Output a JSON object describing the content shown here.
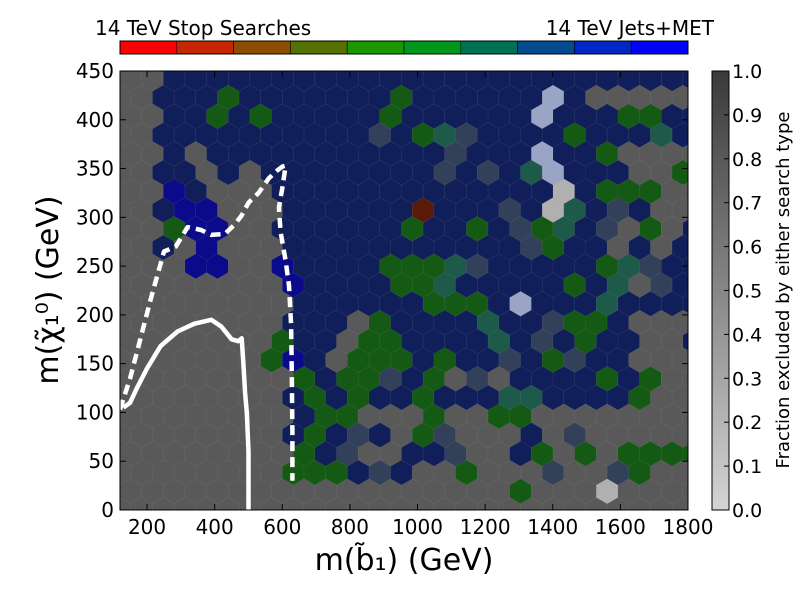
{
  "chart_data": {
    "type": "heatmap",
    "subtype": "hexbin",
    "xlabel": "m(b̃₁) (GeV)",
    "ylabel": "m(χ̃₁⁰) (GeV)",
    "xlim": [
      120,
      1800
    ],
    "ylim": [
      0,
      450
    ],
    "x_ticks": [
      "200",
      "400",
      "600",
      "800",
      "1000",
      "1200",
      "1400",
      "1600",
      "1800"
    ],
    "y_ticks": [
      "0",
      "50",
      "100",
      "150",
      "200",
      "250",
      "300",
      "350",
      "400",
      "450"
    ],
    "colorbar_right": {
      "label": "Fraction excluded by either search type",
      "range": [
        0,
        1
      ],
      "ticks": [
        "0.0",
        "0.1",
        "0.2",
        "0.3",
        "0.4",
        "0.5",
        "0.6",
        "0.7",
        "0.8",
        "0.9",
        "1.0"
      ],
      "low_color": "#d4d4d4",
      "high_color": "#3a3a3a"
    },
    "colorbar_top": {
      "left_label": "14 TeV Stop Searches",
      "right_label": "14 TeV Jets+MET",
      "segments": 10,
      "start_color": "#ff0000",
      "mid_color": "#00aa00",
      "end_color": "#0000ff"
    },
    "background_color": "#595959",
    "hex_colors": {
      "gray": "#595959",
      "darkgray": "#4a4a4a",
      "navy": "#101e5a",
      "blue": "#0a0a8a",
      "slate": "#33405a",
      "green": "#145a14",
      "teal": "#1e5a4a",
      "brown": "#5a1a0a",
      "light": "#b0b0b0",
      "lightblue": "#9aa4c4"
    },
    "hex_default_excluded": "navy",
    "hex_exceptions": [
      {
        "x": 370,
        "y": 355,
        "c": "gray"
      },
      {
        "x": 390,
        "y": 325,
        "c": "gray"
      },
      {
        "x": 430,
        "y": 325,
        "c": "gray"
      },
      {
        "x": 470,
        "y": 330,
        "c": "gray"
      },
      {
        "x": 510,
        "y": 333,
        "c": "gray"
      },
      {
        "x": 490,
        "y": 302,
        "c": "gray"
      },
      {
        "x": 530,
        "y": 302,
        "c": "gray"
      },
      {
        "x": 450,
        "y": 302,
        "c": "gray"
      },
      {
        "x": 510,
        "y": 275,
        "c": "gray"
      },
      {
        "x": 550,
        "y": 275,
        "c": "gray"
      },
      {
        "x": 570,
        "y": 245,
        "c": "gray"
      },
      {
        "x": 530,
        "y": 245,
        "c": "gray"
      },
      {
        "x": 530,
        "y": 215,
        "c": "gray"
      },
      {
        "x": 570,
        "y": 215,
        "c": "gray"
      },
      {
        "x": 610,
        "y": 210,
        "c": "gray"
      },
      {
        "x": 490,
        "y": 245,
        "c": "gray"
      },
      {
        "x": 490,
        "y": 215,
        "c": "gray"
      },
      {
        "x": 350,
        "y": 360,
        "c": "gray"
      },
      {
        "x": 290,
        "y": 255,
        "c": "gray"
      },
      {
        "x": 1380,
        "y": 100,
        "c": "gray"
      },
      {
        "x": 1420,
        "y": 100,
        "c": "gray"
      },
      {
        "x": 1460,
        "y": 100,
        "c": "gray"
      },
      {
        "x": 1500,
        "y": 100,
        "c": "gray"
      },
      {
        "x": 1540,
        "y": 100,
        "c": "gray"
      },
      {
        "x": 1620,
        "y": 100,
        "c": "gray"
      },
      {
        "x": 1660,
        "y": 100,
        "c": "gray"
      },
      {
        "x": 1700,
        "y": 100,
        "c": "gray"
      },
      {
        "x": 1740,
        "y": 100,
        "c": "gray"
      },
      {
        "x": 1780,
        "y": 100,
        "c": "gray"
      },
      {
        "x": 1400,
        "y": 70,
        "c": "gray"
      },
      {
        "x": 1440,
        "y": 70,
        "c": "gray"
      },
      {
        "x": 1560,
        "y": 70,
        "c": "gray"
      },
      {
        "x": 1640,
        "y": 70,
        "c": "gray"
      },
      {
        "x": 1720,
        "y": 70,
        "c": "gray"
      },
      {
        "x": 1760,
        "y": 70,
        "c": "gray"
      },
      {
        "x": 1380,
        "y": 40,
        "c": "gray"
      },
      {
        "x": 1460,
        "y": 40,
        "c": "gray"
      },
      {
        "x": 1540,
        "y": 40,
        "c": "gray"
      },
      {
        "x": 1620,
        "y": 40,
        "c": "gray"
      },
      {
        "x": 1700,
        "y": 40,
        "c": "gray"
      },
      {
        "x": 1780,
        "y": 40,
        "c": "gray"
      },
      {
        "x": 1780,
        "y": 130,
        "c": "gray"
      },
      {
        "x": 1740,
        "y": 130,
        "c": "gray"
      },
      {
        "x": 1700,
        "y": 160,
        "c": "gray"
      },
      {
        "x": 1780,
        "y": 160,
        "c": "gray"
      },
      {
        "x": 1740,
        "y": 185,
        "c": "gray"
      },
      {
        "x": 1780,
        "y": 330,
        "c": "gray"
      },
      {
        "x": 1740,
        "y": 335,
        "c": "gray"
      },
      {
        "x": 1780,
        "y": 360,
        "c": "gray"
      },
      {
        "x": 1660,
        "y": 360,
        "c": "gray"
      },
      {
        "x": 1620,
        "y": 300,
        "c": "gray"
      },
      {
        "x": 1580,
        "y": 270,
        "c": "gray"
      },
      {
        "x": 1700,
        "y": 270,
        "c": "gray"
      },
      {
        "x": 1660,
        "y": 240,
        "c": "gray"
      },
      {
        "x": 1740,
        "y": 300,
        "c": "gray"
      },
      {
        "x": 1780,
        "y": 300,
        "c": "gray"
      },
      {
        "x": 1700,
        "y": 420,
        "c": "gray"
      },
      {
        "x": 1780,
        "y": 420,
        "c": "gray"
      },
      {
        "x": 1620,
        "y": 420,
        "c": "gray"
      },
      {
        "x": 1580,
        "y": 420,
        "c": "gray"
      },
      {
        "x": 1540,
        "y": 420,
        "c": "gray"
      },
      {
        "x": 960,
        "y": 100,
        "c": "gray"
      },
      {
        "x": 880,
        "y": 100,
        "c": "gray"
      },
      {
        "x": 850,
        "y": 70,
        "c": "gray"
      },
      {
        "x": 930,
        "y": 70,
        "c": "gray"
      },
      {
        "x": 1180,
        "y": 70,
        "c": "gray"
      },
      {
        "x": 1260,
        "y": 70,
        "c": "gray"
      },
      {
        "x": 1140,
        "y": 100,
        "c": "gray"
      },
      {
        "x": 1230,
        "y": 130,
        "c": "gray"
      },
      {
        "x": 1100,
        "y": 130,
        "c": "gray"
      },
      {
        "x": 1300,
        "y": 40,
        "c": "gray"
      },
      {
        "x": 1340,
        "y": 40,
        "c": "gray"
      },
      {
        "x": 1100,
        "y": 40,
        "c": "gray"
      },
      {
        "x": 1220,
        "y": 40,
        "c": "gray"
      },
      {
        "x": 1020,
        "y": 40,
        "c": "gray"
      },
      {
        "x": 760,
        "y": 155,
        "c": "gray"
      },
      {
        "x": 800,
        "y": 185,
        "c": "gray"
      },
      {
        "x": 1030,
        "y": 305,
        "c": "brown"
      },
      {
        "x": 1380,
        "y": 355,
        "c": "lightblue"
      },
      {
        "x": 1420,
        "y": 320,
        "c": "light"
      },
      {
        "x": 1540,
        "y": 30,
        "c": "light"
      },
      {
        "x": 1300,
        "y": 210,
        "c": "lightblue"
      },
      {
        "x": 1380,
        "y": 415,
        "c": "lightblue"
      },
      {
        "x": 420,
        "y": 415,
        "c": "green"
      },
      {
        "x": 390,
        "y": 400,
        "c": "green"
      },
      {
        "x": 520,
        "y": 400,
        "c": "green"
      },
      {
        "x": 930,
        "y": 415,
        "c": "green"
      },
      {
        "x": 1000,
        "y": 380,
        "c": "green"
      },
      {
        "x": 1040,
        "y": 385,
        "c": "teal"
      },
      {
        "x": 1340,
        "y": 355,
        "c": "teal"
      },
      {
        "x": 1460,
        "y": 385,
        "c": "green"
      },
      {
        "x": 1580,
        "y": 370,
        "c": "green"
      },
      {
        "x": 1620,
        "y": 415,
        "c": "green"
      },
      {
        "x": 1700,
        "y": 400,
        "c": "green"
      },
      {
        "x": 1740,
        "y": 385,
        "c": "teal"
      },
      {
        "x": 1540,
        "y": 330,
        "c": "green"
      },
      {
        "x": 1660,
        "y": 330,
        "c": "green"
      },
      {
        "x": 1780,
        "y": 355,
        "c": "green"
      },
      {
        "x": 1700,
        "y": 300,
        "c": "green"
      },
      {
        "x": 1480,
        "y": 305,
        "c": "teal"
      },
      {
        "x": 1440,
        "y": 290,
        "c": "teal"
      },
      {
        "x": 970,
        "y": 290,
        "c": "green"
      },
      {
        "x": 1180,
        "y": 285,
        "c": "green"
      },
      {
        "x": 1380,
        "y": 275,
        "c": "green"
      },
      {
        "x": 1620,
        "y": 240,
        "c": "teal"
      },
      {
        "x": 1540,
        "y": 245,
        "c": "green"
      },
      {
        "x": 1460,
        "y": 225,
        "c": "green"
      },
      {
        "x": 1580,
        "y": 210,
        "c": "teal"
      },
      {
        "x": 1100,
        "y": 240,
        "c": "teal"
      },
      {
        "x": 1020,
        "y": 245,
        "c": "green"
      },
      {
        "x": 930,
        "y": 240,
        "c": "green"
      },
      {
        "x": 1060,
        "y": 210,
        "c": "green"
      },
      {
        "x": 1140,
        "y": 210,
        "c": "green"
      },
      {
        "x": 1230,
        "y": 180,
        "c": "teal"
      },
      {
        "x": 880,
        "y": 185,
        "c": "green"
      },
      {
        "x": 920,
        "y": 160,
        "c": "green"
      },
      {
        "x": 970,
        "y": 155,
        "c": "green"
      },
      {
        "x": 850,
        "y": 165,
        "c": "green"
      },
      {
        "x": 810,
        "y": 140,
        "c": "green"
      },
      {
        "x": 770,
        "y": 130,
        "c": "green"
      },
      {
        "x": 690,
        "y": 125,
        "c": "green"
      },
      {
        "x": 730,
        "y": 100,
        "c": "green"
      },
      {
        "x": 810,
        "y": 100,
        "c": "green"
      },
      {
        "x": 850,
        "y": 125,
        "c": "green"
      },
      {
        "x": 1060,
        "y": 150,
        "c": "green"
      },
      {
        "x": 1440,
        "y": 150,
        "c": "green"
      },
      {
        "x": 1500,
        "y": 185,
        "c": "green"
      },
      {
        "x": 1660,
        "y": 125,
        "c": "green"
      },
      {
        "x": 1580,
        "y": 130,
        "c": "green"
      },
      {
        "x": 1540,
        "y": 100,
        "c": "green"
      },
      {
        "x": 1300,
        "y": 110,
        "c": "teal"
      },
      {
        "x": 1340,
        "y": 95,
        "c": "green"
      },
      {
        "x": 1220,
        "y": 100,
        "c": "green"
      },
      {
        "x": 1060,
        "y": 100,
        "c": "green"
      },
      {
        "x": 1020,
        "y": 125,
        "c": "green"
      },
      {
        "x": 690,
        "y": 65,
        "c": "green"
      },
      {
        "x": 730,
        "y": 40,
        "c": "green"
      },
      {
        "x": 650,
        "y": 50,
        "c": "green"
      },
      {
        "x": 770,
        "y": 45,
        "c": "green"
      },
      {
        "x": 690,
        "y": 35,
        "c": "green"
      },
      {
        "x": 850,
        "y": 70,
        "c": "green"
      },
      {
        "x": 1020,
        "y": 70,
        "c": "green"
      },
      {
        "x": 1140,
        "y": 40,
        "c": "green"
      },
      {
        "x": 1380,
        "y": 70,
        "c": "green"
      },
      {
        "x": 1500,
        "y": 60,
        "c": "green"
      },
      {
        "x": 1660,
        "y": 60,
        "c": "green"
      },
      {
        "x": 1300,
        "y": 30,
        "c": "green"
      },
      {
        "x": 1660,
        "y": 30,
        "c": "green"
      },
      {
        "x": 1780,
        "y": 60,
        "c": "green"
      },
      {
        "x": 700,
        "y": 30,
        "c": "green"
      },
      {
        "x": 610,
        "y": 180,
        "c": "green"
      },
      {
        "x": 570,
        "y": 210,
        "c": "green"
      },
      {
        "x": 570,
        "y": 160,
        "c": "green"
      },
      {
        "x": 290,
        "y": 290,
        "c": "green"
      },
      {
        "x": 290,
        "y": 320,
        "c": "blue"
      },
      {
        "x": 330,
        "y": 305,
        "c": "blue"
      },
      {
        "x": 370,
        "y": 295,
        "c": "blue"
      },
      {
        "x": 410,
        "y": 300,
        "c": "blue"
      },
      {
        "x": 390,
        "y": 270,
        "c": "blue"
      },
      {
        "x": 370,
        "y": 255,
        "c": "blue"
      },
      {
        "x": 610,
        "y": 240,
        "c": "blue"
      },
      {
        "x": 610,
        "y": 150,
        "c": "blue"
      },
      {
        "x": 650,
        "y": 150,
        "c": "blue"
      },
      {
        "x": 1140,
        "y": 375,
        "c": "slate"
      },
      {
        "x": 880,
        "y": 385,
        "c": "slate"
      },
      {
        "x": 1220,
        "y": 340,
        "c": "slate"
      },
      {
        "x": 1100,
        "y": 355,
        "c": "slate"
      },
      {
        "x": 1300,
        "y": 300,
        "c": "slate"
      },
      {
        "x": 1580,
        "y": 300,
        "c": "slate"
      },
      {
        "x": 1340,
        "y": 270,
        "c": "slate"
      },
      {
        "x": 1180,
        "y": 250,
        "c": "slate"
      },
      {
        "x": 1700,
        "y": 240,
        "c": "slate"
      },
      {
        "x": 1380,
        "y": 180,
        "c": "slate"
      },
      {
        "x": 1460,
        "y": 160,
        "c": "slate"
      },
      {
        "x": 1260,
        "y": 150,
        "c": "slate"
      },
      {
        "x": 1180,
        "y": 130,
        "c": "slate"
      },
      {
        "x": 930,
        "y": 130,
        "c": "slate"
      },
      {
        "x": 1100,
        "y": 70,
        "c": "slate"
      },
      {
        "x": 1460,
        "y": 70,
        "c": "slate"
      },
      {
        "x": 1580,
        "y": 40,
        "c": "slate"
      },
      {
        "x": 1420,
        "y": 40,
        "c": "slate"
      },
      {
        "x": 890,
        "y": 40,
        "c": "slate"
      },
      {
        "x": 800,
        "y": 70,
        "c": "slate"
      }
    ],
    "hex_extra_gray_region": "rectangles",
    "gray_regions": [
      {
        "x0": 1350,
        "x1": 1800,
        "y0": 0,
        "y1": 115
      },
      {
        "x0": 1640,
        "x1": 1800,
        "y0": 115,
        "y1": 200
      }
    ],
    "contours": [
      {
        "name": "solid",
        "style": "solid",
        "points": [
          [
            130,
            105
          ],
          [
            150,
            110
          ],
          [
            170,
            125
          ],
          [
            200,
            145
          ],
          [
            240,
            168
          ],
          [
            290,
            183
          ],
          [
            340,
            191
          ],
          [
            390,
            195
          ],
          [
            420,
            188
          ],
          [
            450,
            175
          ],
          [
            470,
            173
          ],
          [
            480,
            176
          ],
          [
            485,
            150
          ],
          [
            490,
            120
          ],
          [
            495,
            100
          ],
          [
            500,
            60
          ],
          [
            500,
            0
          ]
        ]
      },
      {
        "name": "dashed",
        "style": "dashed",
        "points": [
          [
            120,
            103
          ],
          [
            150,
            135
          ],
          [
            180,
            175
          ],
          [
            210,
            215
          ],
          [
            250,
            265
          ],
          [
            285,
            270
          ],
          [
            320,
            290
          ],
          [
            360,
            287
          ],
          [
            390,
            282
          ],
          [
            430,
            283
          ],
          [
            460,
            293
          ],
          [
            480,
            302
          ],
          [
            500,
            315
          ],
          [
            530,
            325
          ],
          [
            560,
            340
          ],
          [
            585,
            348
          ],
          [
            600,
            352
          ],
          [
            610,
            353
          ],
          [
            600,
            330
          ],
          [
            590,
            310
          ],
          [
            595,
            285
          ],
          [
            610,
            255
          ],
          [
            620,
            230
          ],
          [
            626,
            190
          ],
          [
            628,
            140
          ],
          [
            630,
            80
          ],
          [
            630,
            30
          ]
        ]
      }
    ]
  }
}
